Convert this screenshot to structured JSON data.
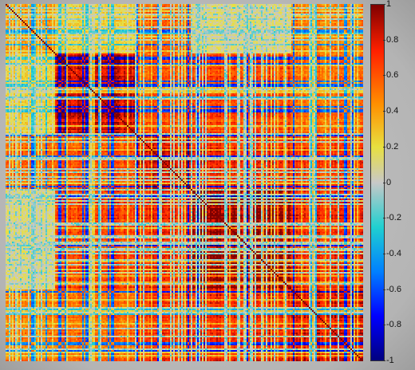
{
  "chart_data": {
    "type": "heatmap",
    "title": "",
    "xlabel": "",
    "ylabel": "",
    "matrix_kind": "symmetric correlation matrix",
    "diagonal_value": 1,
    "value_range": [
      -1,
      1
    ],
    "colormap": "blue-cyan-gray-yellow-orange-red",
    "grid": false,
    "legend": "colorbar-right",
    "colorbar_ticks": [
      "1",
      "0.8",
      "0.6",
      "0.4",
      "0.2",
      "0",
      "-0.2",
      "-0.4",
      "-0.6",
      "-0.8",
      "-1"
    ],
    "colorbar_values": [
      1,
      0.8,
      0.6,
      0.4,
      0.2,
      0,
      -0.2,
      -0.4,
      -0.6,
      -0.8,
      -1
    ],
    "block_boundaries_fraction": [
      0,
      0.14,
      0.36,
      0.52,
      0.8,
      1
    ],
    "block_mean_correlation": [
      [
        0.35,
        0.2,
        0.45,
        0.1,
        0.4
      ],
      [
        0.2,
        0.7,
        0.5,
        0.55,
        0.45
      ],
      [
        0.45,
        0.5,
        0.65,
        0.6,
        0.55
      ],
      [
        0.1,
        0.55,
        0.6,
        0.8,
        0.6
      ],
      [
        0.4,
        0.45,
        0.55,
        0.6,
        0.65
      ]
    ]
  }
}
